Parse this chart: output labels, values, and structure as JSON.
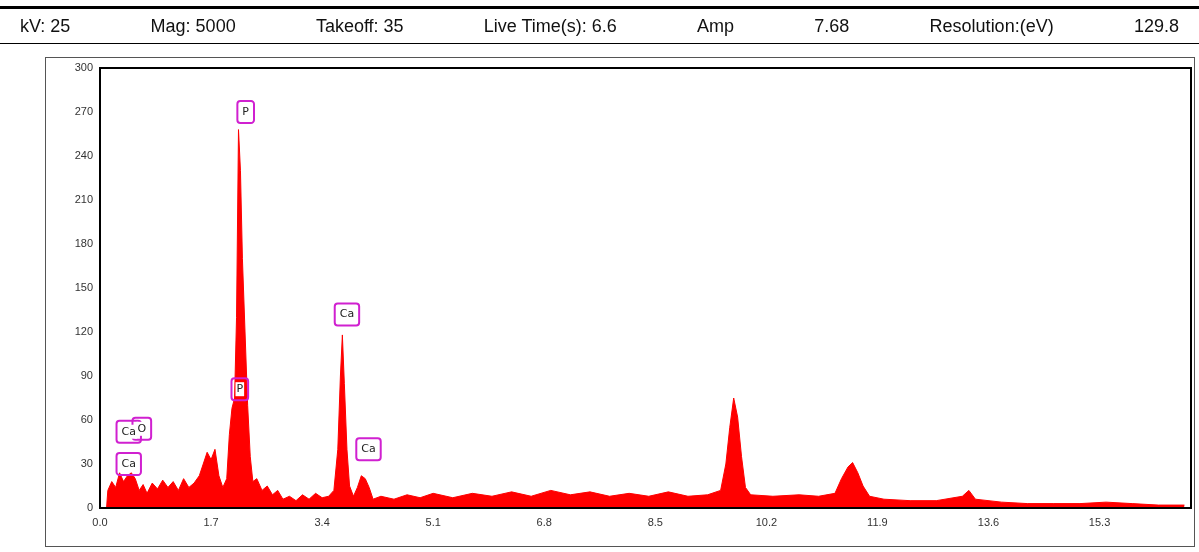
{
  "chart_data": {
    "type": "area",
    "annotations": [
      "kV:  25",
      "Mag: 5000",
      "Takeoff:  35",
      "Live Time(s):  6.6",
      "Amp",
      "7.68",
      "Resolution:(eV)",
      "129.8",
      {
        "text": "P",
        "x": 2.23,
        "y": 270
      },
      {
        "text": "P",
        "x": 2.14,
        "y": 81
      },
      {
        "text": "Ca",
        "x": 3.78,
        "y": 132
      },
      {
        "text": "Ca",
        "x": 4.11,
        "y": 40
      },
      {
        "text": "Ca",
        "x": 0.44,
        "y": 52
      },
      {
        "text": "O",
        "x": 0.64,
        "y": 54
      },
      {
        "text": "Ca",
        "x": 0.44,
        "y": 30
      }
    ],
    "x": [
      0.1,
      0.12,
      0.18,
      0.24,
      0.3,
      0.36,
      0.42,
      0.48,
      0.54,
      0.6,
      0.66,
      0.72,
      0.8,
      0.88,
      0.96,
      1.04,
      1.12,
      1.2,
      1.28,
      1.36,
      1.44,
      1.52,
      1.58,
      1.64,
      1.7,
      1.76,
      1.82,
      1.88,
      1.94,
      1.98,
      2.02,
      2.06,
      2.09,
      2.12,
      2.15,
      2.18,
      2.22,
      2.26,
      2.3,
      2.34,
      2.4,
      2.48,
      2.56,
      2.64,
      2.72,
      2.8,
      2.9,
      3.0,
      3.1,
      3.2,
      3.3,
      3.4,
      3.5,
      3.58,
      3.64,
      3.68,
      3.71,
      3.74,
      3.78,
      3.82,
      3.88,
      3.94,
      4.0,
      4.06,
      4.12,
      4.18,
      4.3,
      4.5,
      4.7,
      4.9,
      5.1,
      5.4,
      5.7,
      6.0,
      6.3,
      6.6,
      6.9,
      7.2,
      7.5,
      7.8,
      8.1,
      8.4,
      8.7,
      9.0,
      9.3,
      9.5,
      9.58,
      9.64,
      9.7,
      9.76,
      9.82,
      9.88,
      9.96,
      10.3,
      10.7,
      11.0,
      11.25,
      11.35,
      11.45,
      11.52,
      11.6,
      11.68,
      11.78,
      12.0,
      12.4,
      12.8,
      13.2,
      13.3,
      13.4,
      13.8,
      14.2,
      14.6,
      15.0,
      15.4,
      15.8,
      16.2,
      16.6
    ],
    "values": [
      0,
      12,
      18,
      14,
      24,
      18,
      22,
      24,
      20,
      12,
      16,
      10,
      17,
      13,
      19,
      14,
      18,
      12,
      20,
      14,
      17,
      22,
      30,
      38,
      33,
      40,
      22,
      14,
      20,
      50,
      68,
      75,
      130,
      258,
      230,
      170,
      120,
      70,
      35,
      18,
      20,
      12,
      15,
      9,
      12,
      6,
      8,
      5,
      9,
      6,
      10,
      7,
      8,
      12,
      40,
      90,
      118,
      85,
      40,
      15,
      8,
      14,
      22,
      20,
      14,
      6,
      8,
      6,
      9,
      7,
      10,
      7,
      10,
      8,
      11,
      8,
      12,
      9,
      11,
      8,
      10,
      8,
      11,
      8,
      9,
      12,
      30,
      55,
      75,
      62,
      35,
      14,
      9,
      8,
      9,
      8,
      10,
      20,
      28,
      31,
      24,
      15,
      8,
      6,
      5,
      5,
      8,
      12,
      6,
      4,
      3,
      3,
      3,
      4,
      3,
      2,
      2
    ],
    "color": "#ff0000",
    "xlim": [
      0,
      16.7
    ],
    "xticks": [
      {
        "value": 0,
        "label": "0.0"
      },
      1.7,
      3.4,
      5.1,
      6.8,
      8.5,
      10.2,
      11.9,
      13.6,
      15.3
    ],
    "ylim": [
      0,
      300
    ],
    "yticks": [
      0,
      30,
      60,
      90,
      120,
      150,
      180,
      210,
      240,
      270,
      300
    ],
    "grid": false,
    "legend": false
  }
}
